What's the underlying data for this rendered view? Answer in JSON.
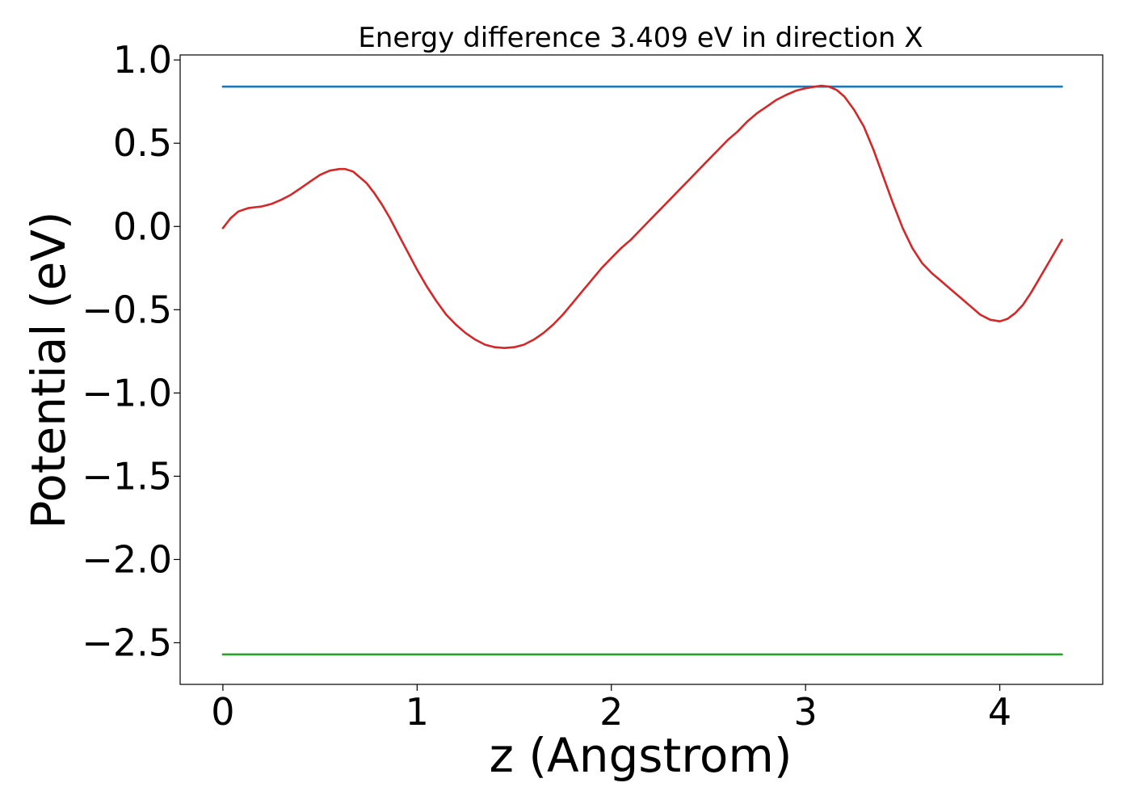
{
  "chart_data": {
    "type": "line",
    "title": "Energy difference 3.409 eV in direction X",
    "xlabel": "z (Angstrom)",
    "ylabel": "Potential (eV)",
    "xlim": [
      -0.22,
      4.53
    ],
    "ylim": [
      -2.75,
      1.03
    ],
    "x_ticks": [
      0,
      1,
      2,
      3,
      4
    ],
    "x_tick_labels": [
      "0",
      "1",
      "2",
      "3",
      "4"
    ],
    "y_ticks": [
      1.0,
      0.5,
      0.0,
      -0.5,
      -1.0,
      -1.5,
      -2.0,
      -2.5
    ],
    "y_tick_labels": [
      "1.0",
      "0.5",
      "0.0",
      "−0.5",
      "−1.0",
      "−1.5",
      "−2.0",
      "−2.5"
    ],
    "grid": false,
    "series": [
      {
        "color": "#1f77b4",
        "x": [
          0,
          4.32
        ],
        "y": [
          0.84,
          0.84
        ]
      },
      {
        "color": "#2ca02c",
        "x": [
          0,
          4.32
        ],
        "y": [
          -2.57,
          -2.57
        ]
      },
      {
        "color": "#d62728",
        "x": [
          0,
          0.04,
          0.08,
          0.13,
          0.2,
          0.25,
          0.3,
          0.35,
          0.4,
          0.45,
          0.5,
          0.55,
          0.6,
          0.63,
          0.67,
          0.7,
          0.74,
          0.78,
          0.82,
          0.86,
          0.9,
          0.95,
          1.0,
          1.05,
          1.1,
          1.15,
          1.2,
          1.25,
          1.3,
          1.35,
          1.4,
          1.45,
          1.5,
          1.55,
          1.6,
          1.65,
          1.7,
          1.75,
          1.8,
          1.85,
          1.9,
          1.95,
          2.0,
          2.05,
          2.1,
          2.15,
          2.2,
          2.25,
          2.3,
          2.35,
          2.4,
          2.45,
          2.5,
          2.55,
          2.6,
          2.65,
          2.7,
          2.75,
          2.8,
          2.85,
          2.9,
          2.95,
          3.0,
          3.05,
          3.08,
          3.12,
          3.16,
          3.2,
          3.25,
          3.3,
          3.35,
          3.4,
          3.45,
          3.5,
          3.55,
          3.6,
          3.65,
          3.7,
          3.75,
          3.8,
          3.85,
          3.9,
          3.95,
          4.0,
          4.04,
          4.08,
          4.12,
          4.16,
          4.2,
          4.25,
          4.3,
          4.32
        ],
        "y": [
          -0.01,
          0.05,
          0.09,
          0.11,
          0.12,
          0.135,
          0.16,
          0.19,
          0.23,
          0.27,
          0.31,
          0.335,
          0.345,
          0.345,
          0.33,
          0.3,
          0.26,
          0.2,
          0.13,
          0.05,
          -0.04,
          -0.15,
          -0.26,
          -0.36,
          -0.45,
          -0.53,
          -0.59,
          -0.64,
          -0.68,
          -0.71,
          -0.725,
          -0.73,
          -0.725,
          -0.71,
          -0.68,
          -0.64,
          -0.59,
          -0.53,
          -0.46,
          -0.39,
          -0.32,
          -0.25,
          -0.19,
          -0.13,
          -0.08,
          -0.02,
          0.04,
          0.1,
          0.16,
          0.22,
          0.28,
          0.34,
          0.4,
          0.46,
          0.52,
          0.57,
          0.63,
          0.68,
          0.72,
          0.76,
          0.79,
          0.815,
          0.83,
          0.84,
          0.845,
          0.84,
          0.82,
          0.78,
          0.7,
          0.6,
          0.46,
          0.3,
          0.14,
          -0.01,
          -0.13,
          -0.22,
          -0.28,
          -0.33,
          -0.38,
          -0.43,
          -0.48,
          -0.53,
          -0.56,
          -0.57,
          -0.555,
          -0.52,
          -0.47,
          -0.4,
          -0.32,
          -0.22,
          -0.12,
          -0.08
        ]
      }
    ]
  }
}
